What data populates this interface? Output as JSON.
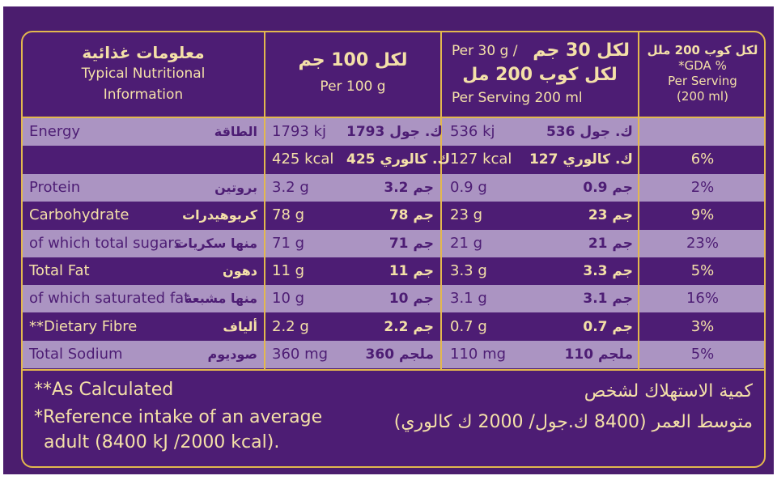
{
  "header": {
    "col1_ar": "معلومات غذائية",
    "col1_en_line1": "Typical Nutritional",
    "col1_en_line2": "Information",
    "col2_ar": "لكل 100 جم",
    "col2_en": "Per 100 g",
    "col3_line1_en": "Per 30 g /",
    "col3_line1_ar": "لكل 30 جم",
    "col3_line2_ar": "لكل كوب 200 مل",
    "col3_line3_en": "Per Serving 200 ml",
    "col4_ar": "لكل كوب 200 ملل",
    "col4_line2": "*GDA %",
    "col4_line3": "Per Serving",
    "col4_line4": "(200 ml)"
  },
  "rows": [
    {
      "en": "Energy",
      "ar": "الطاقة",
      "per100_en": "1793 kj",
      "per100_ar": "1793 ك. جول",
      "serv_en": "536 kj",
      "serv_ar": "536 ك. جول",
      "gda": ""
    },
    {
      "en": "",
      "ar": "",
      "per100_en": "425 kcal",
      "per100_ar": "425 ك. كالوري",
      "serv_en": "127 kcal",
      "serv_ar": "127 ك. كالوري",
      "gda": "6%"
    },
    {
      "en": "Protein",
      "ar": "بروتين",
      "per100_en": "3.2 g",
      "per100_ar": "3.2 جم",
      "serv_en": "0.9 g",
      "serv_ar": "0.9 جم",
      "gda": "2%"
    },
    {
      "en": "Carbohydrate",
      "ar": "كربوهيدرات",
      "per100_en": "78 g",
      "per100_ar": "78 جم",
      "serv_en": "23 g",
      "serv_ar": "23 جم",
      "gda": "9%"
    },
    {
      "en": "of which total sugars",
      "ar": "منها سكريات",
      "per100_en": "71 g",
      "per100_ar": "71 جم",
      "serv_en": "21 g",
      "serv_ar": "21 جم",
      "gda": "23%"
    },
    {
      "en": "Total Fat",
      "ar": "دهون",
      "per100_en": "11 g",
      "per100_ar": "11 جم",
      "serv_en": "3.3 g",
      "serv_ar": "3.3 جم",
      "gda": "5%"
    },
    {
      "en": "of which saturated fat",
      "ar": "منها مشبعة",
      "per100_en": "10 g",
      "per100_ar": "10 جم",
      "serv_en": "3.1 g",
      "serv_ar": "3.1 جم",
      "gda": "16%"
    },
    {
      "en": "**Dietary Fibre",
      "ar": "ألياف",
      "per100_en": "2.2 g",
      "per100_ar": "2.2 جم",
      "serv_en": "0.7 g",
      "serv_ar": "0.7 جم",
      "gda": "3%"
    },
    {
      "en": "Total Sodium",
      "ar": "صوديوم",
      "per100_en": "360 mg",
      "per100_ar": "360 ملجم",
      "serv_en": "110 mg",
      "serv_ar": "110 ملجم",
      "gda": "5%"
    }
  ],
  "footer": {
    "note1": "**As Calculated",
    "note2_line1": "*Reference intake of an average",
    "note2_line2": "adult (8400 kJ /2000 kcal).",
    "ar_line1": "كمية الاستهلاك لشخص",
    "ar_line2": "متوسط العمر (8400 ك.جول/ 2000 ك كالوري)"
  },
  "colors": {
    "purple": "#4d1d74",
    "lavender": "#ab94c2",
    "gold": "#e3b84e",
    "cream": "#f4e0a8"
  }
}
